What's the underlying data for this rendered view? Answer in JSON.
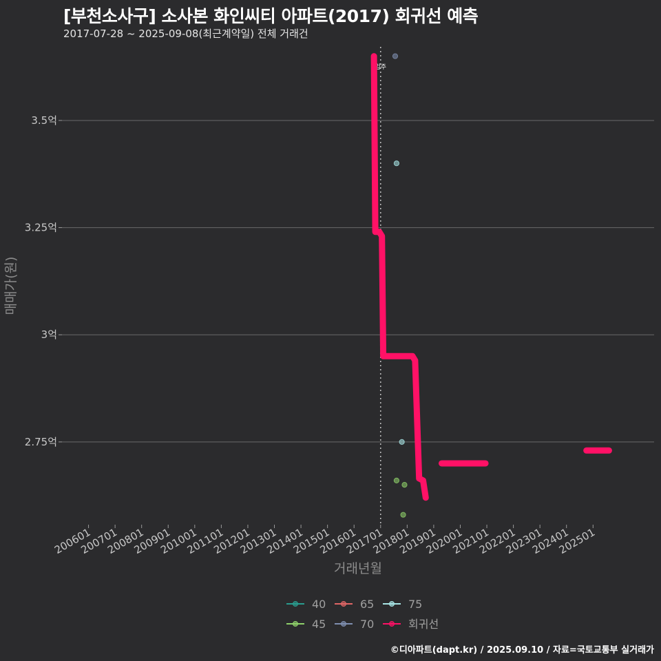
{
  "title": "[부천소사구] 소사본 화인씨티 아파트(2017) 회귀선 예측",
  "subtitle": "2017-07-28 ~ 2025-09-08(최근계약일) 전체 거래건",
  "footer": "©디아파트(dapt.kr) / 2025.09.10 / 자료=국토교통부 실거래가",
  "chart_data": {
    "type": "scatter",
    "xlabel": "거래년월",
    "ylabel": "매매가(원)",
    "x_ticks": [
      "200601",
      "200701",
      "200801",
      "200901",
      "201001",
      "201101",
      "201201",
      "201301",
      "201401",
      "201501",
      "201601",
      "201701",
      "201801",
      "201901",
      "202001",
      "202101",
      "202201",
      "202301",
      "202401",
      "202501"
    ],
    "xlim": [
      2005.0,
      2027.3
    ],
    "ylim": [
      2.557,
      3.675
    ],
    "y_ticks": [
      {
        "value": 3.5,
        "label": "3.5억"
      },
      {
        "value": 3.25,
        "label": "3.25억"
      },
      {
        "value": 3.0,
        "label": "3억"
      },
      {
        "value": 2.75,
        "label": "2.75억"
      }
    ],
    "grid": true,
    "legend_position": "bottom",
    "annotation": {
      "x": 2017.0,
      "label": "입주"
    },
    "series": [
      {
        "name": "40",
        "color": "#2a9d8f",
        "points": []
      },
      {
        "name": "45",
        "color": "#8fd16a",
        "points": [
          [
            2017.6,
            2.66
          ],
          [
            2017.85,
            2.58
          ],
          [
            2017.9,
            2.65
          ]
        ]
      },
      {
        "name": "65",
        "color": "#e06666",
        "points": []
      },
      {
        "name": "70",
        "color": "#7f8fb0",
        "points": [
          [
            2017.55,
            3.65
          ]
        ]
      },
      {
        "name": "75",
        "color": "#a8e6e6",
        "points": [
          [
            2017.6,
            3.4
          ],
          [
            2017.8,
            2.75
          ]
        ]
      },
      {
        "name": "회귀선",
        "color": "#ff1166",
        "line": [
          [
            2016.75,
            3.65
          ],
          [
            2016.8,
            3.24
          ],
          [
            2016.95,
            3.24
          ],
          [
            2017.05,
            3.23
          ],
          [
            2017.1,
            2.95
          ],
          [
            2018.2,
            2.95
          ],
          [
            2018.3,
            2.94
          ],
          [
            2018.45,
            2.665
          ],
          [
            2018.6,
            2.66
          ],
          [
            2018.7,
            2.62
          ]
        ],
        "segments": [
          [
            [
              2019.3,
              2.7
            ],
            [
              2020.95,
              2.7
            ]
          ],
          [
            [
              2024.75,
              2.73
            ],
            [
              2025.6,
              2.73
            ]
          ]
        ]
      }
    ]
  }
}
